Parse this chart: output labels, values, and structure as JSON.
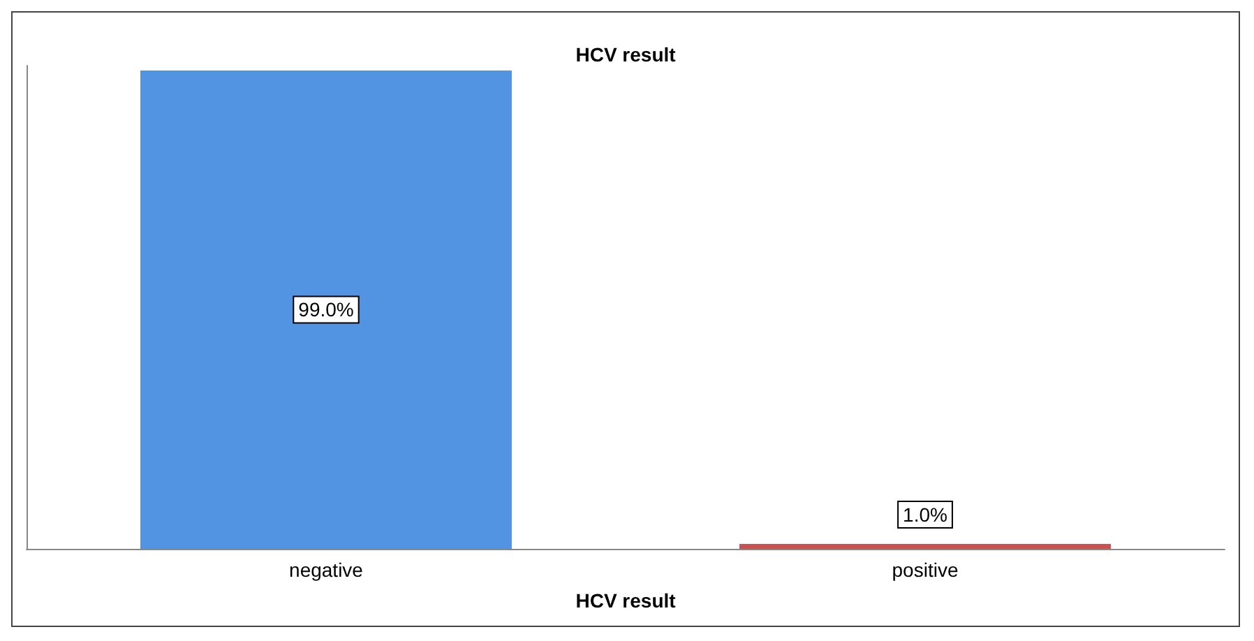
{
  "chart_data": {
    "type": "bar",
    "title": "HCV result",
    "xlabel": "HCV result",
    "categories": [
      "negative",
      "positive"
    ],
    "values": [
      99.0,
      1.0
    ],
    "colors": [
      "#5294e2",
      "#c9514f"
    ],
    "value_labels": [
      "99.0%",
      "1.0%"
    ]
  }
}
